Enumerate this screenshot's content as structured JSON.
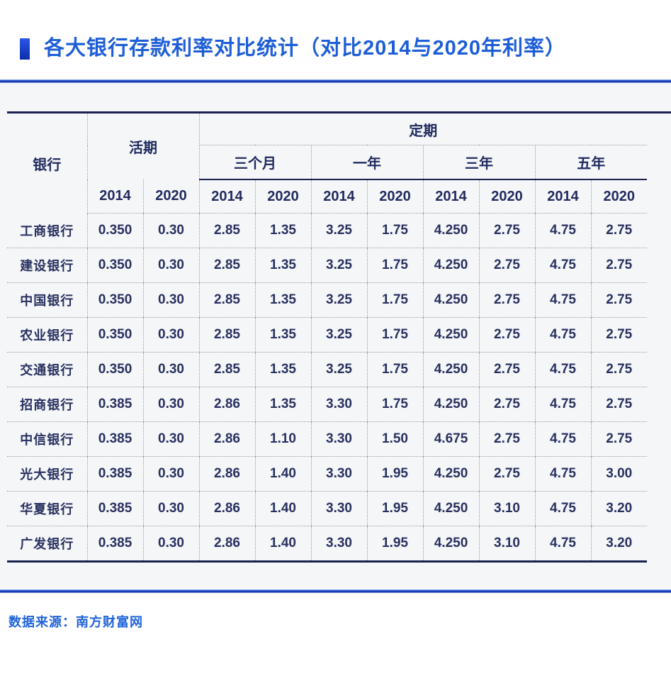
{
  "page": {
    "title": "各大银行存款利率对比统计（对比2014与2020年利率）",
    "source_label": "数据来源：南方财富网"
  },
  "colors": {
    "title_blue": "#1d5ed6",
    "navy_text": "#1f2a5e",
    "rule_blue": "#1b49c8",
    "table_border_navy": "#18214f",
    "dotted_gray": "#979da8",
    "band_background": "#f5f6f8"
  },
  "table": {
    "col_bank": "银行",
    "group_demand": "活期",
    "group_fixed": "定期",
    "subgroups": [
      "三个月",
      "一年",
      "三年",
      "五年"
    ],
    "year_headers": [
      "2014",
      "2020",
      "2014",
      "2020",
      "2014",
      "2020",
      "2014",
      "2020",
      "2014",
      "2020"
    ],
    "rows": [
      {
        "bank": "工商银行",
        "values": [
          "0.350",
          "0.30",
          "2.85",
          "1.35",
          "3.25",
          "1.75",
          "4.250",
          "2.75",
          "4.75",
          "2.75"
        ]
      },
      {
        "bank": "建设银行",
        "values": [
          "0.350",
          "0.30",
          "2.85",
          "1.35",
          "3.25",
          "1.75",
          "4.250",
          "2.75",
          "4.75",
          "2.75"
        ]
      },
      {
        "bank": "中国银行",
        "values": [
          "0.350",
          "0.30",
          "2.85",
          "1.35",
          "3.25",
          "1.75",
          "4.250",
          "2.75",
          "4.75",
          "2.75"
        ]
      },
      {
        "bank": "农业银行",
        "values": [
          "0.350",
          "0.30",
          "2.85",
          "1.35",
          "3.25",
          "1.75",
          "4.250",
          "2.75",
          "4.75",
          "2.75"
        ]
      },
      {
        "bank": "交通银行",
        "values": [
          "0.350",
          "0.30",
          "2.85",
          "1.35",
          "3.25",
          "1.75",
          "4.250",
          "2.75",
          "4.75",
          "2.75"
        ]
      },
      {
        "bank": "招商银行",
        "values": [
          "0.385",
          "0.30",
          "2.86",
          "1.35",
          "3.30",
          "1.75",
          "4.250",
          "2.75",
          "4.75",
          "2.75"
        ]
      },
      {
        "bank": "中信银行",
        "values": [
          "0.385",
          "0.30",
          "2.86",
          "1.10",
          "3.30",
          "1.50",
          "4.675",
          "2.75",
          "4.75",
          "2.75"
        ]
      },
      {
        "bank": "光大银行",
        "values": [
          "0.385",
          "0.30",
          "2.86",
          "1.40",
          "3.30",
          "1.95",
          "4.250",
          "2.75",
          "4.75",
          "3.00"
        ]
      },
      {
        "bank": "华夏银行",
        "values": [
          "0.385",
          "0.30",
          "2.86",
          "1.40",
          "3.30",
          "1.95",
          "4.250",
          "3.10",
          "4.75",
          "3.20"
        ]
      },
      {
        "bank": "广发银行",
        "values": [
          "0.385",
          "0.30",
          "2.86",
          "1.40",
          "3.30",
          "1.95",
          "4.250",
          "3.10",
          "4.75",
          "3.20"
        ]
      }
    ]
  },
  "chart_data": {
    "type": "table",
    "title": "各大银行存款利率对比统计（对比2014与2020年利率）",
    "source": "数据来源：南方财富网",
    "column_groups": [
      {
        "label": "活期",
        "columns": [
          "2014",
          "2020"
        ]
      },
      {
        "label": "定期 三个月",
        "columns": [
          "2014",
          "2020"
        ]
      },
      {
        "label": "定期 一年",
        "columns": [
          "2014",
          "2020"
        ]
      },
      {
        "label": "定期 三年",
        "columns": [
          "2014",
          "2020"
        ]
      },
      {
        "label": "定期 五年",
        "columns": [
          "2014",
          "2020"
        ]
      }
    ],
    "columns": [
      "银行",
      "活期2014",
      "活期2020",
      "三个月2014",
      "三个月2020",
      "一年2014",
      "一年2020",
      "三年2014",
      "三年2020",
      "五年2014",
      "五年2020"
    ],
    "rows": [
      [
        "工商银行",
        0.35,
        0.3,
        2.85,
        1.35,
        3.25,
        1.75,
        4.25,
        2.75,
        4.75,
        2.75
      ],
      [
        "建设银行",
        0.35,
        0.3,
        2.85,
        1.35,
        3.25,
        1.75,
        4.25,
        2.75,
        4.75,
        2.75
      ],
      [
        "中国银行",
        0.35,
        0.3,
        2.85,
        1.35,
        3.25,
        1.75,
        4.25,
        2.75,
        4.75,
        2.75
      ],
      [
        "农业银行",
        0.35,
        0.3,
        2.85,
        1.35,
        3.25,
        1.75,
        4.25,
        2.75,
        4.75,
        2.75
      ],
      [
        "交通银行",
        0.35,
        0.3,
        2.85,
        1.35,
        3.25,
        1.75,
        4.25,
        2.75,
        4.75,
        2.75
      ],
      [
        "招商银行",
        0.385,
        0.3,
        2.86,
        1.35,
        3.3,
        1.75,
        4.25,
        2.75,
        4.75,
        2.75
      ],
      [
        "中信银行",
        0.385,
        0.3,
        2.86,
        1.1,
        3.3,
        1.5,
        4.675,
        2.75,
        4.75,
        2.75
      ],
      [
        "光大银行",
        0.385,
        0.3,
        2.86,
        1.4,
        3.3,
        1.95,
        4.25,
        2.75,
        4.75,
        3.0
      ],
      [
        "华夏银行",
        0.385,
        0.3,
        2.86,
        1.4,
        3.3,
        1.95,
        4.25,
        3.1,
        4.75,
        3.2
      ],
      [
        "广发银行",
        0.385,
        0.3,
        2.86,
        1.4,
        3.3,
        1.95,
        4.25,
        3.1,
        4.75,
        3.2
      ]
    ]
  }
}
